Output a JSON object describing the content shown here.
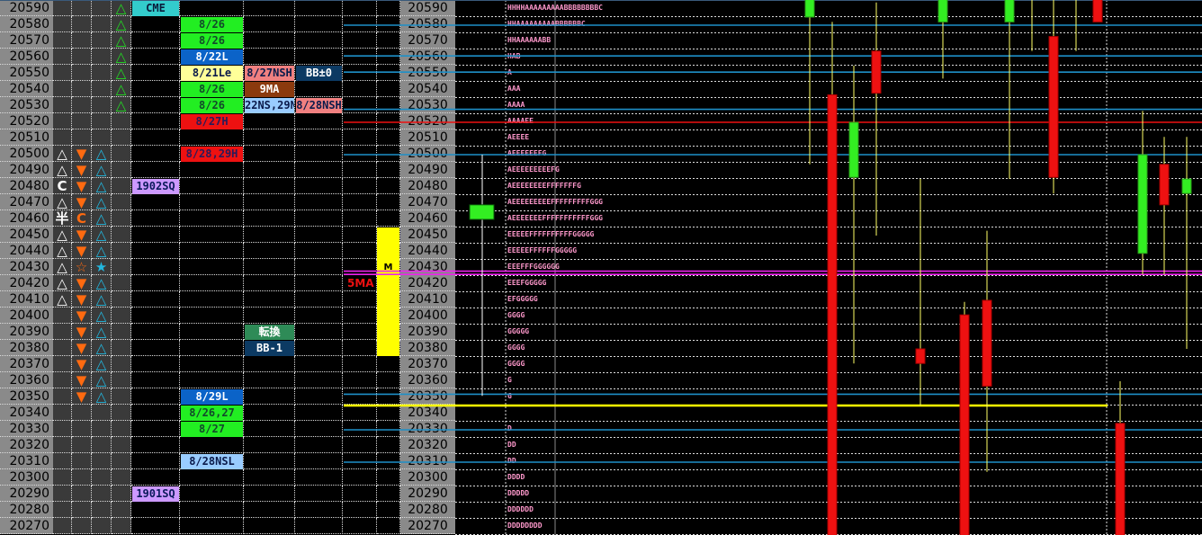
{
  "prices": [
    20590,
    20580,
    20570,
    20560,
    20550,
    20540,
    20530,
    20520,
    20510,
    20500,
    20490,
    20480,
    20470,
    20460,
    20450,
    20440,
    20430,
    20420,
    20410,
    20400,
    20390,
    20380,
    20370,
    20360,
    20350,
    20340,
    20330,
    20320,
    20310,
    20300,
    20290,
    20280,
    20270
  ],
  "markers": {
    "col1": {
      "20500": "△",
      "20490": "△",
      "20480": "C",
      "20470": "△",
      "20460": "半",
      "20450": "△",
      "20440": "△",
      "20430": "△",
      "20420": "△",
      "20410": "△"
    },
    "col2": {
      "20500": "▼",
      "20490": "▼",
      "20480": "▼",
      "20470": "▼",
      "20460": "C",
      "20450": "▼",
      "20440": "▼",
      "20430": "☆",
      "20420": "▼",
      "20410": "▼",
      "20400": "▼",
      "20390": "▼",
      "20380": "▼",
      "20370": "▼",
      "20360": "▼",
      "20350": "▼"
    },
    "col3": {
      "20500": "△",
      "20490": "△",
      "20480": "△",
      "20470": "△",
      "20460": "△",
      "20450": "△",
      "20440": "△",
      "20430": "★",
      "20420": "△",
      "20410": "△",
      "20400": "△",
      "20390": "△",
      "20380": "△",
      "20370": "△",
      "20360": "△",
      "20350": "△"
    },
    "col4": {
      "20590": "△",
      "20580": "△",
      "20570": "△",
      "20560": "△",
      "20550": "△",
      "20540": "△",
      "20530": "△"
    }
  },
  "marker_colors": {
    "col1": "#ffffff",
    "col2": "#ff6a10",
    "col3": "#22b8e0",
    "col4": "#22dd22"
  },
  "labels": [
    {
      "price": 20590,
      "col": "a",
      "text": "CME",
      "bg": "#33cccc",
      "fg": "#0a1a3a"
    },
    {
      "price": 20580,
      "col": "b",
      "text": "8/26",
      "bg": "#22ee22",
      "fg": "#124a2a"
    },
    {
      "price": 20570,
      "col": "b",
      "text": "8/26",
      "bg": "#22ee22",
      "fg": "#124a2a"
    },
    {
      "price": 20560,
      "col": "b",
      "text": "8/22L",
      "bg": "#0b63c8",
      "fg": "#ffffff"
    },
    {
      "price": 20550,
      "col": "b",
      "text": "8/21Le",
      "bg": "#ffff99",
      "fg": "#0a1a4a"
    },
    {
      "price": 20550,
      "col": "c",
      "text": "8/27NSH",
      "bg": "#f08080",
      "fg": "#0a1a4a"
    },
    {
      "price": 20550,
      "col": "d",
      "text": "BB±0",
      "bg": "#0c3a63",
      "fg": "#ffffff"
    },
    {
      "price": 20540,
      "col": "b",
      "text": "8/26",
      "bg": "#22ee22",
      "fg": "#124a2a"
    },
    {
      "price": 20540,
      "col": "c",
      "text": "9MA",
      "bg": "#8b3a0e",
      "fg": "#ffffff"
    },
    {
      "price": 20530,
      "col": "b",
      "text": "8/26",
      "bg": "#22ee22",
      "fg": "#124a2a"
    },
    {
      "price": 20530,
      "col": "c",
      "text": "22NS,29N",
      "bg": "#99ccff",
      "fg": "#0a1a4a"
    },
    {
      "price": 20530,
      "col": "d",
      "text": "8/28NSH",
      "bg": "#f08080",
      "fg": "#0a1a4a"
    },
    {
      "price": 20520,
      "col": "b",
      "text": "8/27H",
      "bg": "#ee1111",
      "fg": "#2a1a5a"
    },
    {
      "price": 20500,
      "col": "b",
      "text": "8/28,29H",
      "bg": "#ee1111",
      "fg": "#2a1a5a"
    },
    {
      "price": 20480,
      "col": "a",
      "text": "1902SQ",
      "bg": "#cc99ff",
      "fg": "#0a1a5a"
    },
    {
      "price": 20390,
      "col": "c",
      "text": "転換",
      "bg": "#2e8b57",
      "fg": "#ffffff"
    },
    {
      "price": 20380,
      "col": "c",
      "text": "BB-1",
      "bg": "#0c3a63",
      "fg": "#ffffff"
    },
    {
      "price": 20350,
      "col": "b",
      "text": "8/29L",
      "bg": "#0b63c8",
      "fg": "#ffffff"
    },
    {
      "price": 20340,
      "col": "b",
      "text": "8/26,27",
      "bg": "#22ee22",
      "fg": "#124a2a"
    },
    {
      "price": 20330,
      "col": "b",
      "text": "8/27",
      "bg": "#22ee22",
      "fg": "#124a2a"
    },
    {
      "price": 20310,
      "col": "b",
      "text": "8/28NSL",
      "bg": "#99ccff",
      "fg": "#0a1a4a"
    },
    {
      "price": 20290,
      "col": "a",
      "text": "1901SQ",
      "bg": "#cc99ff",
      "fg": "#0a1a5a"
    }
  ],
  "tpo": {
    "20590": "HHHHAAAAAAAAABBBBBBBBC",
    "20580": "HHAAAAAAAAABBBBBBC",
    "20570": "HHAAAAAABB",
    "20560": "HAB",
    "20550": "A",
    "20540": "AAA",
    "20530": "AAAA",
    "20520": "AAAAEE",
    "20510": "AEEEE",
    "20500": "AEEEEEEFG",
    "20490": "AEEEEEEEEEFG",
    "20480": "AEEEEEEEEFFFFFFFG",
    "20470": "AEEEEEEEEEFFFFFFFFFGGG",
    "20460": "AEEEEEEEFFFFFFFFFFFGGG",
    "20450": "EEEEEFFFFFFFFFFGGGGG",
    "20440": "EEEEEFFFFFFGGGGG",
    "20430": "EEEFFFGGGGGG",
    "20420": "EEEFGGGGG",
    "20410": "EFGGGGG",
    "20400": "GGGG",
    "20390": "GGGGG",
    "20380": "GGGG",
    "20370": "GGGG",
    "20360": "G",
    "20350": "G",
    "20330": "D",
    "20320": "DD",
    "20310": "DD",
    "20300": "DDDD",
    "20290": "DDDDD",
    "20280": "DDDDDD",
    "20270": "DDDDDDDD"
  },
  "value_area": {
    "high": 20450,
    "low": 20380,
    "poc": 20430,
    "poc_label": "M",
    "color": "#ffff00"
  },
  "ma_label": {
    "text": "5MA",
    "color": "#ee1111"
  },
  "hlines": [
    {
      "price": 20580,
      "color": "#1e90c8"
    },
    {
      "price": 20561,
      "color": "#1e90c8"
    },
    {
      "price": 20551,
      "color": "#1e90c8"
    },
    {
      "price": 20528,
      "color": "#1e90c8"
    },
    {
      "price": 20520,
      "color": "#ee1111"
    },
    {
      "price": 20500,
      "color": "#1e90c8"
    },
    {
      "price": 20428,
      "color": "#ee22ee"
    },
    {
      "price": 20426,
      "color": "#ee22ee"
    },
    {
      "price": 20352,
      "color": "#1e90c8"
    },
    {
      "price": 20345,
      "color": "#ffff00"
    },
    {
      "price": 20330,
      "color": "#1e90c8"
    },
    {
      "price": 20310,
      "color": "#1e90c8"
    }
  ],
  "profile_candle": {
    "open": 20460,
    "high": 20500,
    "low": 20351,
    "close": 20469
  },
  "candles": [
    {
      "open": 20585,
      "high": 20600,
      "low": 20494,
      "close": 20600
    },
    {
      "open": 20537,
      "high": 20582,
      "low": 20250,
      "close": 20250
    },
    {
      "open": 20486,
      "high": 20555,
      "low": 20371,
      "close": 20520
    },
    {
      "open": 20564,
      "high": 20594,
      "low": 20450,
      "close": 20538
    },
    {
      "open": 20380,
      "high": 20485,
      "low": 20345,
      "close": 20371
    },
    {
      "open": 20582,
      "high": 20600,
      "low": 20547,
      "close": 20600
    },
    {
      "open": 20401,
      "high": 20409,
      "low": 20250,
      "close": 20250
    },
    {
      "open": 20410,
      "high": 20453,
      "low": 20304,
      "close": 20357
    },
    {
      "open": 20582,
      "high": 20600,
      "low": 20485,
      "close": 20600
    },
    {
      "open": 20600,
      "high": 20600,
      "low": 20564,
      "close": 20600
    },
    {
      "open": 20573,
      "high": 20600,
      "low": 20476,
      "close": 20486
    },
    {
      "open": 20600,
      "high": 20600,
      "low": 20564,
      "close": 20600
    },
    {
      "open": 20600,
      "high": 20600,
      "low": 20582,
      "close": 20582
    },
    {
      "open": 20334,
      "high": 20360,
      "low": 20250,
      "close": 20250
    },
    {
      "open": 20439,
      "high": 20527,
      "low": 20426,
      "close": 20500
    },
    {
      "open": 20494,
      "high": 20511,
      "low": 20426,
      "close": 20469
    },
    {
      "open": 20476,
      "high": 20511,
      "low": 20380,
      "close": 20485
    }
  ],
  "candle_colors": {
    "up": "#33ee22",
    "down": "#ee1111",
    "wick": "#ffff66"
  }
}
